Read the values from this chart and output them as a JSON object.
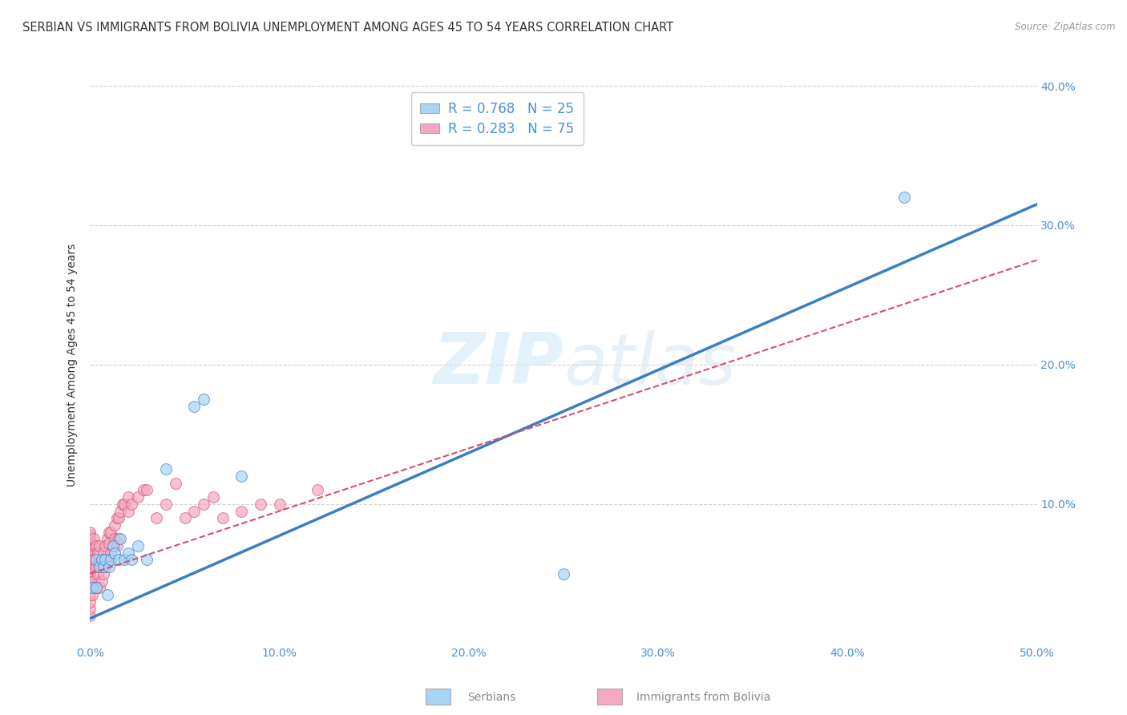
{
  "title": "SERBIAN VS IMMIGRANTS FROM BOLIVIA UNEMPLOYMENT AMONG AGES 45 TO 54 YEARS CORRELATION CHART",
  "source": "Source: ZipAtlas.com",
  "ylabel": "Unemployment Among Ages 45 to 54 years",
  "xlabel_serbians": "Serbians",
  "xlabel_bolivia": "Immigrants from Bolivia",
  "xlim": [
    0.0,
    0.5
  ],
  "ylim": [
    0.0,
    0.4
  ],
  "xticks": [
    0.0,
    0.1,
    0.2,
    0.3,
    0.4,
    0.5
  ],
  "yticks": [
    0.0,
    0.1,
    0.2,
    0.3,
    0.4
  ],
  "xtick_labels": [
    "0.0%",
    "10.0%",
    "20.0%",
    "30.0%",
    "40.0%",
    "50.0%"
  ],
  "ytick_labels_right": [
    "",
    "10.0%",
    "20.0%",
    "30.0%",
    "40.0%"
  ],
  "serbian_color": "#A8D4F5",
  "bolivia_color": "#F5A8C0",
  "line_serbian_color": "#3A7EC6",
  "line_bolivia_color": "#D45070",
  "R_serbian": 0.768,
  "N_serbian": 25,
  "R_bolivia": 0.283,
  "N_bolivia": 75,
  "watermark_zip": "ZIP",
  "watermark_atlas": "atlas",
  "background_color": "#ffffff",
  "grid_color": "#cccccc",
  "serbian_points_x": [
    0.001,
    0.003,
    0.003,
    0.005,
    0.006,
    0.007,
    0.008,
    0.009,
    0.01,
    0.011,
    0.012,
    0.013,
    0.015,
    0.016,
    0.018,
    0.02,
    0.022,
    0.025,
    0.03,
    0.04,
    0.055,
    0.06,
    0.08,
    0.25,
    0.43
  ],
  "serbian_points_y": [
    0.04,
    0.04,
    0.06,
    0.055,
    0.06,
    0.055,
    0.06,
    0.035,
    0.055,
    0.06,
    0.07,
    0.065,
    0.06,
    0.075,
    0.06,
    0.065,
    0.06,
    0.07,
    0.06,
    0.125,
    0.17,
    0.175,
    0.12,
    0.05,
    0.32
  ],
  "bolivia_points_x": [
    0.0,
    0.0,
    0.0,
    0.0,
    0.0,
    0.0,
    0.0,
    0.0,
    0.0,
    0.0,
    0.0,
    0.0,
    0.0,
    0.0,
    0.0,
    0.0,
    0.0,
    0.0,
    0.0,
    0.0,
    0.0,
    0.001,
    0.001,
    0.002,
    0.002,
    0.002,
    0.003,
    0.003,
    0.003,
    0.004,
    0.004,
    0.005,
    0.005,
    0.005,
    0.006,
    0.006,
    0.007,
    0.007,
    0.008,
    0.008,
    0.009,
    0.009,
    0.01,
    0.01,
    0.01,
    0.011,
    0.011,
    0.012,
    0.013,
    0.013,
    0.014,
    0.014,
    0.015,
    0.015,
    0.016,
    0.017,
    0.018,
    0.02,
    0.02,
    0.022,
    0.025,
    0.028,
    0.03,
    0.035,
    0.04,
    0.045,
    0.05,
    0.055,
    0.06,
    0.065,
    0.07,
    0.08,
    0.09,
    0.1,
    0.12
  ],
  "bolivia_points_y": [
    0.02,
    0.025,
    0.03,
    0.035,
    0.04,
    0.042,
    0.045,
    0.048,
    0.05,
    0.052,
    0.055,
    0.058,
    0.06,
    0.062,
    0.065,
    0.068,
    0.07,
    0.072,
    0.075,
    0.078,
    0.08,
    0.035,
    0.055,
    0.045,
    0.06,
    0.075,
    0.04,
    0.055,
    0.07,
    0.05,
    0.065,
    0.04,
    0.055,
    0.07,
    0.045,
    0.06,
    0.05,
    0.065,
    0.055,
    0.07,
    0.06,
    0.075,
    0.06,
    0.072,
    0.08,
    0.065,
    0.08,
    0.07,
    0.075,
    0.085,
    0.07,
    0.09,
    0.075,
    0.09,
    0.095,
    0.1,
    0.1,
    0.095,
    0.105,
    0.1,
    0.105,
    0.11,
    0.11,
    0.09,
    0.1,
    0.115,
    0.09,
    0.095,
    0.1,
    0.105,
    0.09,
    0.095,
    0.1,
    0.1,
    0.11
  ],
  "serbian_line_x0": 0.0,
  "serbian_line_y0": 0.018,
  "serbian_line_x1": 0.5,
  "serbian_line_y1": 0.315,
  "bolivia_line_x0": 0.0,
  "bolivia_line_y0": 0.05,
  "bolivia_line_x1": 0.5,
  "bolivia_line_y1": 0.275,
  "marker_size": 100,
  "title_fontsize": 10.5,
  "axis_label_fontsize": 10,
  "tick_fontsize": 10,
  "legend_fontsize": 12
}
